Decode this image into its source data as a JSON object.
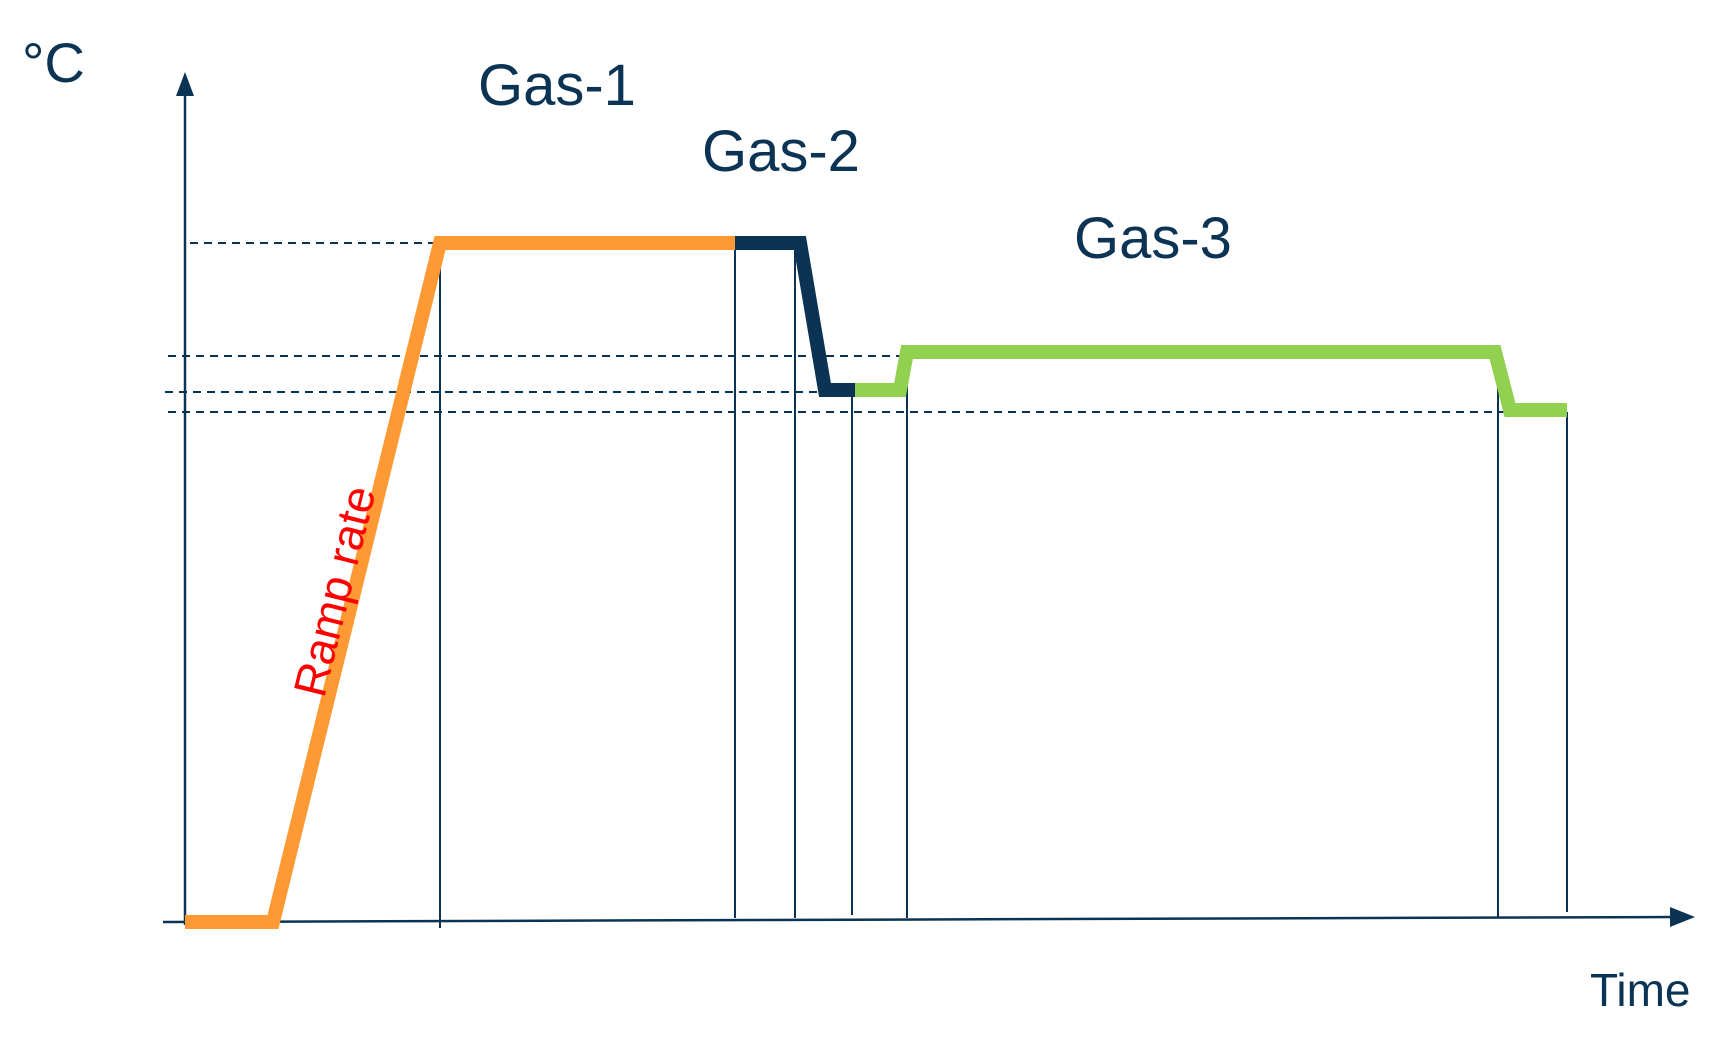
{
  "labels": {
    "y_axis_unit": "°C",
    "x_axis_label": "Time",
    "gas1": "Gas-1",
    "gas2": "Gas-2",
    "gas3": "Gas-3",
    "ramp": "Ramp rate"
  },
  "colors": {
    "axis": "#0b3354",
    "gas1": "#ff9933",
    "gas2": "#0b3354",
    "gas3": "#92d050",
    "ramp_label": "#ff0000",
    "text": "#0b3354"
  }
}
